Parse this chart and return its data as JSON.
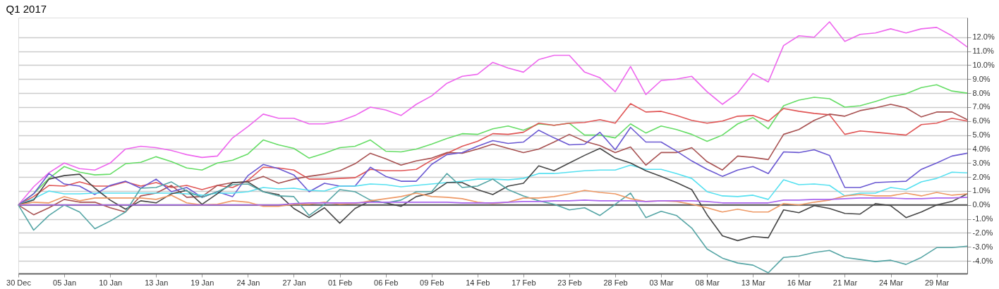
{
  "chart_data": {
    "type": "line",
    "title": "Q1 2017",
    "categories": [
      "30 Dec",
      null,
      null,
      "05 Jan",
      null,
      null,
      "10 Jan",
      null,
      null,
      "13 Jan",
      null,
      null,
      "19 Jan",
      null,
      null,
      "24 Jan",
      null,
      null,
      "27 Jan",
      null,
      null,
      "01 Feb",
      null,
      null,
      "06 Feb",
      null,
      null,
      "09 Feb",
      null,
      null,
      "14 Feb",
      null,
      null,
      "17 Feb",
      null,
      null,
      "23 Feb",
      null,
      null,
      "28 Feb",
      null,
      null,
      "03 Mar",
      null,
      null,
      "08 Mar",
      null,
      null,
      "13 Mar",
      null,
      null,
      "16 Mar",
      null,
      null,
      "21 Mar",
      null,
      null,
      "24 Mar",
      null,
      null,
      "29 Mar",
      null,
      null
    ],
    "series": [
      {
        "color": "#ee66ee",
        "values": [
          0,
          1.3,
          2.3,
          3.0,
          2.6,
          2.5,
          3.0,
          4.0,
          4.2,
          4.1,
          3.9,
          3.6,
          3.4,
          3.5,
          4.8,
          5.6,
          6.5,
          6.2,
          6.2,
          5.8,
          5.8,
          6.0,
          6.4,
          7.0,
          6.8,
          6.4,
          7.2,
          7.8,
          8.7,
          9.2,
          9.35,
          10.2,
          9.8,
          9.5,
          10.4,
          10.7,
          10.7,
          9.5,
          9.1,
          8.1,
          9.9,
          7.9,
          8.9,
          9.0,
          9.2,
          8.1,
          7.2,
          8.0,
          9.4,
          8.8,
          11.4,
          12.1,
          12.0,
          13.1,
          11.7,
          12.2,
          12.3,
          12.6,
          12.3,
          12.6,
          12.7,
          12.1,
          11.3
        ]
      },
      {
        "color": "#66dd66",
        "values": [
          0,
          0.8,
          1.9,
          2.75,
          2.35,
          2.15,
          2.2,
          2.95,
          3.05,
          3.45,
          3.1,
          2.65,
          2.5,
          3.0,
          3.2,
          3.65,
          4.65,
          4.3,
          4.05,
          3.35,
          3.7,
          4.1,
          4.2,
          4.65,
          3.85,
          3.8,
          4.0,
          4.35,
          4.75,
          5.1,
          5.05,
          5.45,
          5.65,
          5.35,
          5.8,
          5.7,
          5.85,
          5.0,
          5.0,
          4.8,
          5.8,
          5.15,
          5.65,
          5.4,
          5.05,
          4.55,
          5.0,
          5.8,
          6.25,
          5.45,
          7.1,
          7.5,
          7.7,
          7.6,
          7.0,
          7.1,
          7.4,
          7.75,
          7.95,
          8.4,
          8.6,
          8.15,
          8.0
        ]
      },
      {
        "color": "#e05555",
        "values": [
          0,
          0.6,
          1.4,
          1.35,
          1.65,
          1.35,
          1.35,
          1.65,
          1.35,
          1.6,
          1.25,
          1.4,
          1.1,
          1.4,
          1.25,
          1.75,
          2.7,
          2.65,
          2.5,
          1.85,
          1.85,
          1.9,
          1.95,
          2.55,
          2.45,
          2.45,
          2.55,
          3.2,
          3.7,
          4.2,
          4.55,
          5.1,
          5.05,
          5.2,
          5.85,
          5.7,
          5.85,
          5.9,
          6.1,
          5.85,
          7.25,
          6.65,
          6.7,
          6.4,
          6.05,
          5.85,
          6.0,
          6.35,
          6.4,
          6.0,
          6.9,
          6.7,
          6.55,
          6.45,
          5.05,
          5.3,
          5.2,
          5.1,
          5.0,
          5.75,
          5.85,
          6.2,
          6.0
        ]
      },
      {
        "color": "#a85252",
        "values": [
          0,
          -0.7,
          -0.2,
          0.4,
          0.2,
          0.2,
          -0.2,
          -0.5,
          0.65,
          0.85,
          1.4,
          0.55,
          0.6,
          1.4,
          1.6,
          1.65,
          2.05,
          1.55,
          1.85,
          2.05,
          2.2,
          2.45,
          2.95,
          3.7,
          3.3,
          2.85,
          3.15,
          3.35,
          3.75,
          3.7,
          4.0,
          4.35,
          4.05,
          3.75,
          4.0,
          4.5,
          5.05,
          4.55,
          4.25,
          3.75,
          4.15,
          2.85,
          3.75,
          3.75,
          4.1,
          3.1,
          2.5,
          3.5,
          3.4,
          3.25,
          5.05,
          5.4,
          6.05,
          6.5,
          6.35,
          6.75,
          6.95,
          7.2,
          6.95,
          6.3,
          6.65,
          6.65,
          6.1
        ]
      },
      {
        "color": "#6a58d2",
        "values": [
          0,
          0.8,
          2.25,
          1.5,
          1.35,
          0.75,
          1.4,
          1.7,
          1.2,
          1.85,
          0.95,
          1.25,
          0.55,
          0.95,
          0.6,
          2.1,
          2.9,
          2.6,
          2.15,
          0.95,
          1.55,
          1.35,
          1.35,
          2.7,
          2.05,
          1.7,
          1.7,
          2.9,
          3.6,
          3.75,
          4.2,
          4.6,
          4.4,
          4.5,
          5.35,
          4.8,
          4.3,
          4.35,
          5.2,
          3.95,
          5.55,
          4.5,
          4.5,
          3.85,
          3.15,
          2.55,
          2.05,
          2.5,
          2.75,
          2.25,
          3.8,
          3.75,
          3.95,
          3.55,
          1.25,
          1.25,
          1.6,
          1.65,
          1.7,
          2.55,
          3.0,
          3.5,
          3.7
        ]
      },
      {
        "color": "#55e0f0",
        "values": [
          0,
          0.45,
          1.0,
          0.8,
          0.8,
          0.85,
          0.85,
          0.85,
          0.85,
          0.85,
          0.85,
          0.8,
          0.7,
          0.85,
          0.85,
          0.95,
          1.25,
          1.15,
          1.2,
          1.05,
          1.0,
          1.35,
          1.35,
          1.5,
          1.45,
          1.3,
          1.4,
          1.5,
          1.6,
          1.7,
          1.85,
          1.85,
          1.8,
          1.9,
          2.25,
          2.25,
          2.35,
          2.45,
          2.5,
          2.5,
          2.85,
          2.55,
          2.55,
          2.25,
          1.9,
          0.95,
          0.65,
          0.6,
          0.7,
          0.4,
          1.8,
          1.45,
          1.5,
          1.4,
          0.65,
          0.85,
          0.85,
          1.25,
          1.1,
          1.65,
          1.9,
          2.35,
          2.3
        ]
      },
      {
        "color": "#454545",
        "values": [
          0,
          0.35,
          1.85,
          2.1,
          2.2,
          1.2,
          0.35,
          -0.3,
          0.3,
          0.15,
          0.8,
          1.05,
          0.05,
          0.8,
          1.6,
          1.65,
          0.95,
          0.75,
          -0.25,
          -0.9,
          -0.2,
          -1.3,
          -0.25,
          0.3,
          0.15,
          -0.1,
          0.6,
          0.85,
          1.6,
          1.6,
          1.1,
          0.75,
          1.35,
          1.55,
          2.8,
          2.45,
          3.0,
          3.55,
          4.05,
          3.35,
          3.0,
          2.45,
          2.05,
          1.6,
          1.1,
          -0.7,
          -2.2,
          -2.55,
          -2.25,
          -2.35,
          -0.35,
          -0.55,
          -0.05,
          -0.25,
          -0.6,
          -0.65,
          0.1,
          -0.05,
          -0.9,
          -0.5,
          0.0,
          0.25,
          0.8
        ]
      },
      {
        "color": "#55a5a5",
        "values": [
          0,
          -1.8,
          -0.75,
          0.0,
          -0.5,
          -1.7,
          -1.15,
          -0.5,
          1.2,
          1.25,
          1.65,
          1.0,
          0.55,
          0.95,
          1.45,
          1.5,
          0.95,
          0.65,
          0.6,
          -0.75,
          0.05,
          1.1,
          0.95,
          0.35,
          0.15,
          0.35,
          0.95,
          0.95,
          2.25,
          1.25,
          1.35,
          1.85,
          1.1,
          0.65,
          0.3,
          0.05,
          -0.35,
          -0.2,
          -0.75,
          0.05,
          0.85,
          -0.9,
          -0.45,
          -0.75,
          -1.65,
          -3.15,
          -3.8,
          -4.15,
          -4.3,
          -4.85,
          -3.75,
          -3.65,
          -3.4,
          -3.25,
          -3.75,
          -3.9,
          -4.05,
          -3.95,
          -4.25,
          -3.75,
          -3.05,
          -3.05,
          -2.95
        ]
      },
      {
        "color": "#ee9966",
        "values": [
          0,
          0.2,
          0.15,
          0.6,
          0.3,
          0.5,
          0.5,
          0.5,
          0.5,
          0.4,
          0.7,
          0.15,
          0.0,
          0.05,
          0.3,
          0.2,
          -0.1,
          -0.1,
          0.05,
          0.05,
          0.2,
          0.05,
          0.1,
          0.3,
          0.45,
          0.6,
          0.85,
          0.6,
          0.55,
          0.45,
          0.2,
          0.1,
          0.2,
          0.5,
          0.5,
          0.6,
          0.8,
          1.05,
          0.9,
          0.8,
          0.45,
          0.25,
          0.3,
          0.25,
          0.05,
          -0.2,
          -0.5,
          -0.3,
          -0.5,
          -0.5,
          0.1,
          0.0,
          0.2,
          0.35,
          0.65,
          0.75,
          0.65,
          0.65,
          0.85,
          0.65,
          0.9,
          0.7,
          0.8
        ]
      },
      {
        "color": "#aa66ee",
        "values": [
          0,
          0,
          0,
          0,
          0,
          0,
          0,
          0,
          0,
          0,
          0,
          0,
          0,
          0,
          0,
          0,
          0,
          0,
          0.1,
          0.15,
          0.15,
          0.15,
          0.15,
          0.2,
          0.2,
          0.2,
          0.2,
          0.2,
          0.2,
          0.15,
          0.15,
          0.15,
          0.2,
          0.25,
          0.25,
          0.3,
          0.3,
          0.35,
          0.3,
          0.3,
          0.3,
          0.25,
          0.3,
          0.3,
          0.3,
          0.25,
          0.15,
          0.15,
          0.15,
          0.15,
          0.35,
          0.35,
          0.4,
          0.4,
          0.45,
          0.5,
          0.5,
          0.5,
          0.45,
          0.45,
          0.5,
          0.5,
          0.55
        ]
      }
    ],
    "ylim": [
      -4.9,
      13.4
    ],
    "yticks": [
      {
        "value": -4,
        "label": "-4.0%"
      },
      {
        "value": -3,
        "label": "-3.0%"
      },
      {
        "value": -2,
        "label": "-2.0%"
      },
      {
        "value": -1,
        "label": "-1.0%"
      },
      {
        "value": 0,
        "label": "0.0%"
      },
      {
        "value": 1,
        "label": "1.0%"
      },
      {
        "value": 2,
        "label": "2.0%"
      },
      {
        "value": 3,
        "label": "3.0%"
      },
      {
        "value": 4,
        "label": "4.0%"
      },
      {
        "value": 5,
        "label": "5.0%"
      },
      {
        "value": 6,
        "label": "6.0%"
      },
      {
        "value": 7,
        "label": "7.0%"
      },
      {
        "value": 8,
        "label": "8.0%"
      },
      {
        "value": 9,
        "label": "9.0%"
      },
      {
        "value": 10,
        "label": "10.0%"
      },
      {
        "value": 11,
        "label": "11.0%"
      },
      {
        "value": 12,
        "label": "12.0%"
      }
    ],
    "ref_lines": [
      {
        "axis": "y",
        "value": 0,
        "color": "#555555"
      }
    ],
    "grid": "y",
    "legend": false,
    "marker": "none",
    "line_style": "solid"
  }
}
